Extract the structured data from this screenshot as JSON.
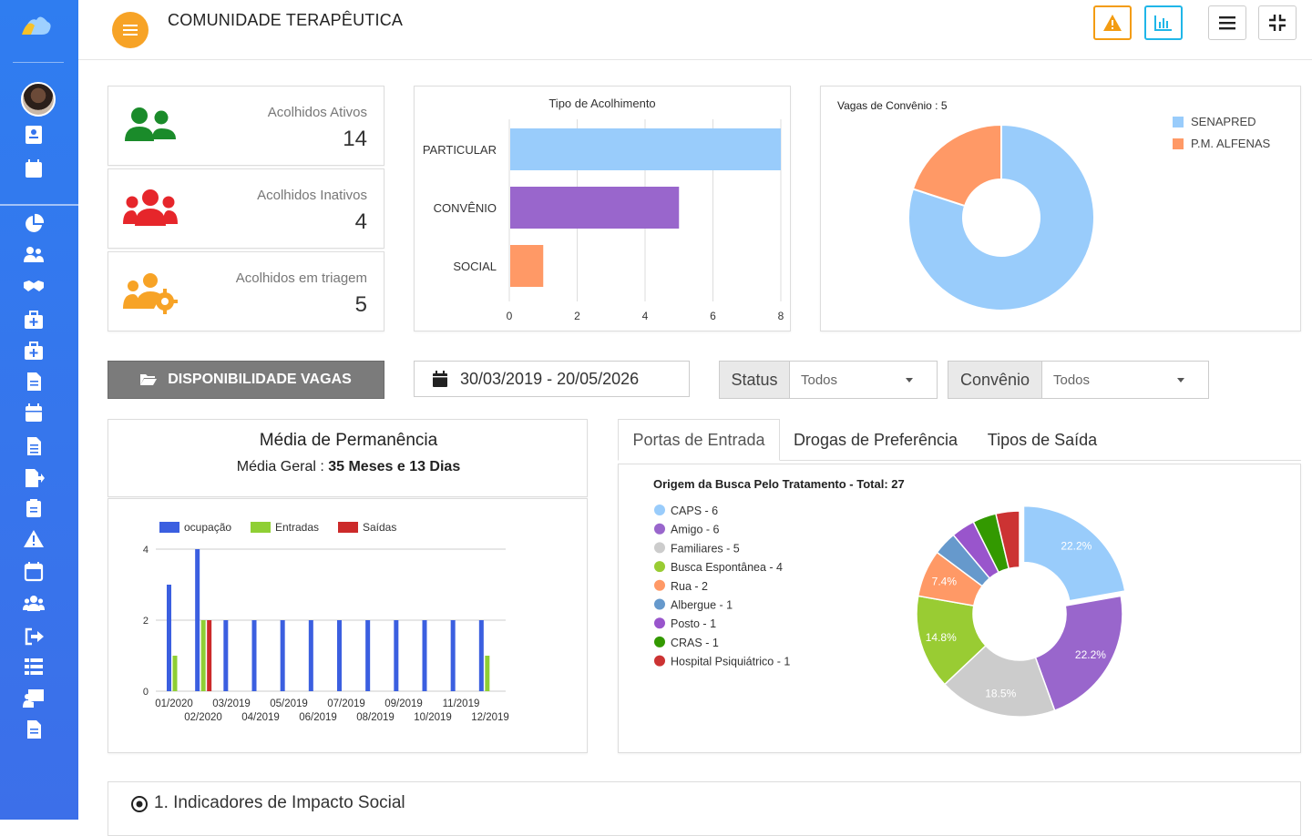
{
  "app": {
    "title": "COMUNIDADE TERAPÊUTICA"
  },
  "colors": {
    "sidebar": "#3574ee",
    "orange": "#f7a326",
    "teal": "#20b6e8",
    "warn": "#f39c12"
  },
  "stats": [
    {
      "label": "Acolhidos Ativos",
      "value": "14",
      "icon": "users-icon",
      "color": "#1a8b2a"
    },
    {
      "label": "Acolhidos Inativos",
      "value": "4",
      "icon": "users-icon",
      "color": "#e6262b"
    },
    {
      "label": "Acolhidos em triagem",
      "value": "5",
      "icon": "users-gear-icon",
      "color": "#f7a326"
    }
  ],
  "tipo_chart": {
    "title": "Tipo de Acolhimento",
    "categories": [
      "PARTICULAR",
      "CONVÊNIO",
      "SOCIAL"
    ],
    "values": [
      8,
      5,
      1
    ],
    "colors": [
      "#99ccfb",
      "#9966cc",
      "#ff9966"
    ],
    "ticks": [
      "0",
      "2",
      "4",
      "6",
      "8"
    ]
  },
  "vagas_chart": {
    "title": "Vagas de Convênio : 5",
    "legend": [
      "SENAPRED",
      "P.M. ALFENAS"
    ],
    "values": [
      4,
      1
    ],
    "colors": [
      "#99ccfb",
      "#ff9966"
    ]
  },
  "controls": {
    "disp_button": "DISPONIBILIDADE VAGAS",
    "date_range": "30/03/2019 - 20/05/2026",
    "status_label": "Status",
    "status_value": "Todos",
    "convenio_label": "Convênio",
    "convenio_value": "Todos"
  },
  "permanencia": {
    "title": "Média de Permanência",
    "subtitle_prefix": "Média Geral : ",
    "subtitle_value": "35 Meses e 13 Dias"
  },
  "perm_chart": {
    "legend": [
      "ocupação",
      "Entradas",
      "Saídas"
    ],
    "colors": [
      "#3b5fe0",
      "#8fcf34",
      "#cc2a2a"
    ],
    "y_ticks": [
      "0",
      "2",
      "4"
    ],
    "x_labels_top": [
      "01/2020",
      "03/2019",
      "05/2019",
      "07/2019",
      "09/2019",
      "11/2019"
    ],
    "x_labels_bottom": [
      "02/2020",
      "04/2019",
      "06/2019",
      "08/2019",
      "10/2019",
      "12/2019"
    ],
    "groups": [
      {
        "label": "01/2020",
        "ocupacao": 3,
        "entradas": 1,
        "saidas": 0
      },
      {
        "label": "02/2020",
        "ocupacao": 4,
        "entradas": 2,
        "saidas": 2
      },
      {
        "label": "03/2019",
        "ocupacao": 2,
        "entradas": 0,
        "saidas": 0
      },
      {
        "label": "04/2019",
        "ocupacao": 2,
        "entradas": 0,
        "saidas": 0
      },
      {
        "label": "05/2019",
        "ocupacao": 2,
        "entradas": 0,
        "saidas": 0
      },
      {
        "label": "06/2019",
        "ocupacao": 2,
        "entradas": 0,
        "saidas": 0
      },
      {
        "label": "07/2019",
        "ocupacao": 2,
        "entradas": 0,
        "saidas": 0
      },
      {
        "label": "08/2019",
        "ocupacao": 2,
        "entradas": 0,
        "saidas": 0
      },
      {
        "label": "09/2019",
        "ocupacao": 2,
        "entradas": 0,
        "saidas": 0
      },
      {
        "label": "10/2019",
        "ocupacao": 2,
        "entradas": 0,
        "saidas": 0
      },
      {
        "label": "11/2019",
        "ocupacao": 2,
        "entradas": 0,
        "saidas": 0
      },
      {
        "label": "12/2019",
        "ocupacao": 2,
        "entradas": 1,
        "saidas": 0
      }
    ]
  },
  "tabs": [
    "Portas de Entrada",
    "Drogas de Preferência",
    "Tipos de Saída"
  ],
  "origem_chart": {
    "title": "Origem da Busca Pelo Tratamento - Total: 27",
    "legend": [
      {
        "label": "CAPS - 6",
        "value": 6,
        "color": "#99ccfb"
      },
      {
        "label": "Amigo - 6",
        "value": 6,
        "color": "#9966cc"
      },
      {
        "label": "Familiares - 5",
        "value": 5,
        "color": "#cccccc"
      },
      {
        "label": "Busca Espontânea - 4",
        "value": 4,
        "color": "#99cc33"
      },
      {
        "label": "Rua - 2",
        "value": 2,
        "color": "#ff9966"
      },
      {
        "label": "Albergue - 1",
        "value": 1,
        "color": "#6699cc"
      },
      {
        "label": "Posto - 1",
        "value": 1,
        "color": "#9955cc"
      },
      {
        "label": "CRAS - 1",
        "value": 1,
        "color": "#339900"
      },
      {
        "label": "Hospital Psiquiátrico - 1",
        "value": 1,
        "color": "#cc3333"
      }
    ],
    "slice_labels": [
      "22.2%",
      "22.2%",
      "18.5%",
      "14.8%",
      "7.4%"
    ]
  },
  "indicator": {
    "label": "1. Indicadores de Impacto Social"
  }
}
